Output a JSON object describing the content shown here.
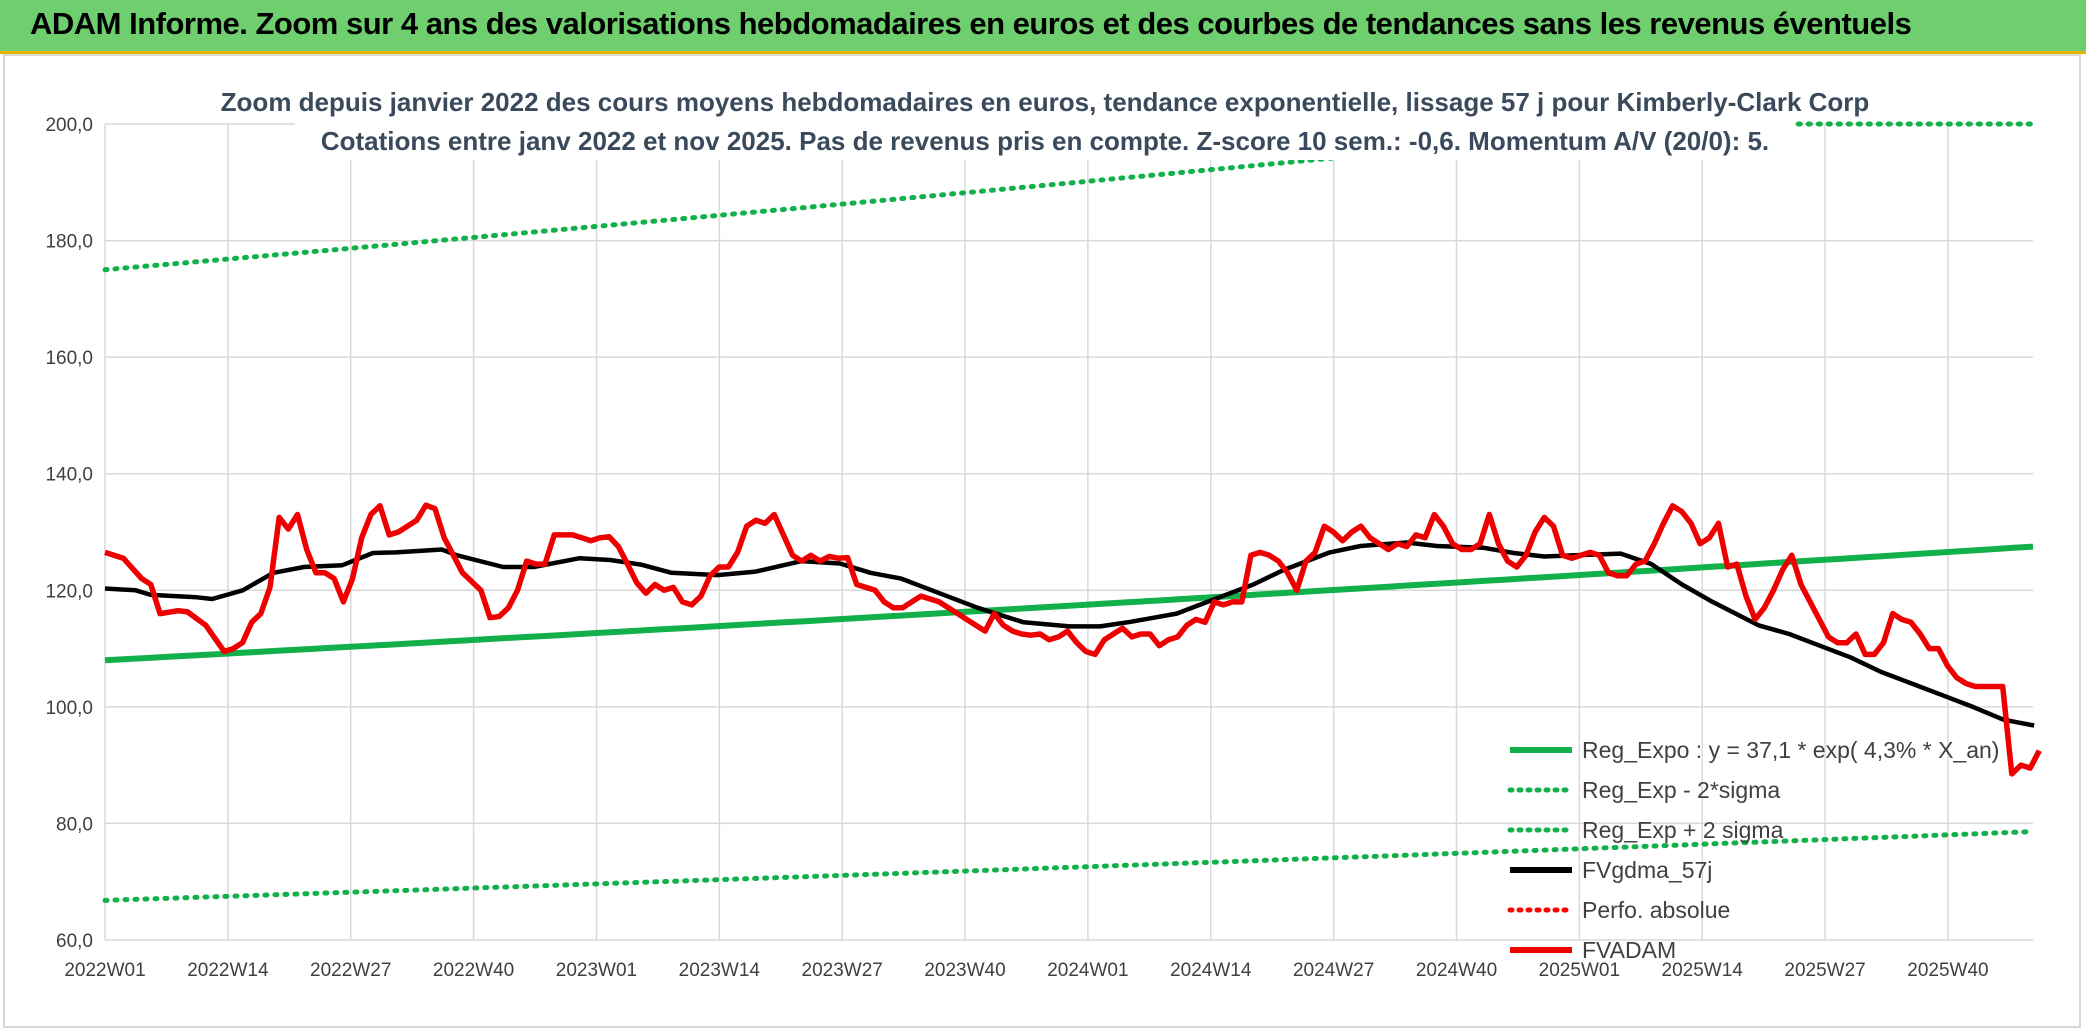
{
  "header": {
    "title": "ADAM Informe. Zoom sur 4 ans des valorisations hebdomadaires en euros et des courbes de tendances sans les revenus éventuels"
  },
  "chart_data": {
    "type": "line",
    "title_line1": "Zoom depuis janvier 2022 des cours moyens hebdomadaires en euros, tendance exponentielle, lissage 57 j pour Kimberly-Clark Corp",
    "title_line2": "Cotations entre janv 2022 et nov 2025. Pas de revenus pris en compte. Z-score 10 sem.: -0,6. Momentum A/V (20/0): 5.",
    "ylim": [
      60,
      200
    ],
    "yticks": [
      "200,0",
      "180,0",
      "160,0",
      "140,0",
      "120,0",
      "100,0",
      "80,0",
      "60,0"
    ],
    "yticks_values": [
      200,
      180,
      160,
      140,
      120,
      100,
      80,
      60
    ],
    "x_tick_labels": [
      "2022W01",
      "2022W14",
      "2022W27",
      "2022W40",
      "2023W01",
      "2023W14",
      "2023W27",
      "2023W40",
      "2024W01",
      "2024W14",
      "2024W27",
      "2024W40",
      "2025W01",
      "2025W14",
      "2025W27",
      "2025W40"
    ],
    "x_tick_interval_weeks": 13,
    "n_weeks": 204,
    "legend": [
      {
        "key": "reg_expo",
        "label": "Reg_Expo : y = 37,1 * exp( 4,3% *  X_an)",
        "color": "#12b04a",
        "style": "solid"
      },
      {
        "key": "reg_minus",
        "label": "Reg_Exp - 2*sigma",
        "color": "#12b04a",
        "style": "dotted"
      },
      {
        "key": "reg_plus",
        "label": "Reg_Exp + 2 sigma",
        "color": "#12b04a",
        "style": "dotted"
      },
      {
        "key": "fvgdma",
        "label": "FVgdma_57j",
        "color": "#000000",
        "style": "solid"
      },
      {
        "key": "perfo",
        "label": "Perfo. absolue",
        "color": "#ff0000",
        "style": "dotted"
      },
      {
        "key": "fvadam",
        "label": "FVADAM",
        "color": "#ee0000",
        "style": "solid"
      }
    ],
    "series": {
      "reg_expo": {
        "start": 108.0,
        "end": 127.5
      },
      "reg_minus": {
        "start": 66.8,
        "end": 78.6
      },
      "reg_plus": {
        "start": 175.0,
        "end": 206.0
      },
      "fvgdma": [
        [
          0,
          120.3
        ],
        [
          4,
          120
        ],
        [
          6,
          119.2
        ],
        [
          12,
          118.8
        ],
        [
          14,
          118.5
        ],
        [
          18,
          120
        ],
        [
          22,
          123
        ],
        [
          26,
          124
        ],
        [
          31,
          124.3
        ],
        [
          35,
          126.4
        ],
        [
          38,
          126.5
        ],
        [
          44,
          127
        ],
        [
          46,
          126
        ],
        [
          52,
          124
        ],
        [
          56,
          124
        ],
        [
          62,
          125.5
        ],
        [
          66,
          125.2
        ],
        [
          70,
          124.4
        ],
        [
          74,
          123
        ],
        [
          80,
          122.6
        ],
        [
          85,
          123.2
        ],
        [
          91,
          125
        ],
        [
          96,
          124.6
        ],
        [
          100,
          123
        ],
        [
          104,
          122
        ],
        [
          108,
          120
        ],
        [
          114,
          117
        ],
        [
          120,
          114.5
        ],
        [
          126,
          113.8
        ],
        [
          130,
          113.8
        ],
        [
          134,
          114.6
        ],
        [
          140,
          116
        ],
        [
          144,
          118
        ],
        [
          150,
          121
        ],
        [
          154,
          123.5
        ],
        [
          160,
          126.5
        ],
        [
          164,
          127.6
        ],
        [
          170,
          128.2
        ],
        [
          174,
          127.6
        ],
        [
          180,
          127.3
        ],
        [
          184,
          126.4
        ],
        [
          188,
          125.8
        ],
        [
          192,
          126
        ],
        [
          198,
          126.3
        ],
        [
          202,
          124.5
        ],
        [
          206,
          121
        ],
        [
          210,
          118
        ],
        [
          216,
          114
        ],
        [
          220,
          112.5
        ],
        [
          224,
          110.5
        ],
        [
          228,
          108.5
        ],
        [
          232,
          106
        ],
        [
          236,
          104
        ],
        [
          240,
          102
        ],
        [
          244,
          100
        ],
        [
          248,
          97.8
        ],
        [
          252,
          96.8
        ]
      ],
      "fvadam": [
        [
          0,
          126.5
        ],
        [
          2,
          125.5
        ],
        [
          4,
          122
        ],
        [
          5,
          121
        ],
        [
          6,
          116
        ],
        [
          8,
          116.5
        ],
        [
          9,
          116.3
        ],
        [
          11,
          114
        ],
        [
          13,
          109.5
        ],
        [
          14,
          110
        ],
        [
          15,
          111
        ],
        [
          16,
          114.5
        ],
        [
          17,
          116
        ],
        [
          18,
          120.5
        ],
        [
          19,
          132.5
        ],
        [
          20,
          130.5
        ],
        [
          21,
          133
        ],
        [
          22,
          127
        ],
        [
          23,
          123
        ],
        [
          24,
          123
        ],
        [
          25,
          122
        ],
        [
          26,
          118
        ],
        [
          27,
          122
        ],
        [
          28,
          129
        ],
        [
          29,
          133
        ],
        [
          30,
          134.5
        ],
        [
          31,
          129.5
        ],
        [
          32,
          130
        ],
        [
          33,
          131
        ],
        [
          34,
          132
        ],
        [
          35,
          134.6
        ],
        [
          36,
          134
        ],
        [
          37,
          129
        ],
        [
          38,
          126
        ],
        [
          39,
          123
        ],
        [
          40,
          121.5
        ],
        [
          41,
          120
        ],
        [
          42,
          115.3
        ],
        [
          43,
          115.5
        ],
        [
          44,
          117
        ],
        [
          45,
          120
        ],
        [
          46,
          125
        ],
        [
          47,
          124.5
        ],
        [
          48,
          124.5
        ],
        [
          49,
          129.5
        ],
        [
          50,
          129.5
        ],
        [
          51,
          129.5
        ],
        [
          52,
          129
        ],
        [
          53,
          128.5
        ],
        [
          54,
          129
        ],
        [
          55,
          129.2
        ],
        [
          56,
          127.5
        ],
        [
          57,
          124.5
        ],
        [
          58,
          121.3
        ],
        [
          59,
          119.5
        ],
        [
          60,
          121
        ],
        [
          61,
          120
        ],
        [
          62,
          120.5
        ],
        [
          63,
          118
        ],
        [
          64,
          117.5
        ],
        [
          65,
          119
        ],
        [
          66,
          122.5
        ],
        [
          67,
          124
        ],
        [
          68,
          124
        ],
        [
          69,
          126.5
        ],
        [
          70,
          131
        ],
        [
          71,
          132
        ],
        [
          72,
          131.5
        ],
        [
          73,
          133
        ],
        [
          74,
          129.5
        ],
        [
          75,
          126
        ],
        [
          76,
          125
        ],
        [
          77,
          126
        ],
        [
          78,
          125
        ],
        [
          79,
          125.8
        ],
        [
          80,
          125.5
        ],
        [
          81,
          125.6
        ],
        [
          82,
          121
        ],
        [
          83,
          120.5
        ],
        [
          84,
          120
        ],
        [
          85,
          118
        ],
        [
          86,
          117
        ],
        [
          87,
          117
        ],
        [
          88,
          118
        ],
        [
          89,
          119
        ],
        [
          90,
          118.5
        ],
        [
          91,
          118
        ],
        [
          92,
          117
        ],
        [
          93,
          116
        ],
        [
          94,
          115
        ],
        [
          95,
          114
        ],
        [
          96,
          113
        ],
        [
          97,
          116
        ],
        [
          98,
          114
        ],
        [
          99,
          113
        ],
        [
          100,
          112.5
        ],
        [
          101,
          112.3
        ],
        [
          102,
          112.5
        ],
        [
          103,
          111.5
        ],
        [
          104,
          112
        ],
        [
          105,
          113
        ],
        [
          106,
          111
        ],
        [
          107,
          109.5
        ],
        [
          108,
          109
        ],
        [
          109,
          111.5
        ],
        [
          110,
          112.5
        ],
        [
          111,
          113.5
        ],
        [
          112,
          112
        ],
        [
          113,
          112.5
        ],
        [
          114,
          112.5
        ],
        [
          115,
          110.5
        ],
        [
          116,
          111.5
        ],
        [
          117,
          112
        ],
        [
          118,
          114
        ],
        [
          119,
          115
        ],
        [
          120,
          114.5
        ],
        [
          121,
          118
        ],
        [
          122,
          117.5
        ],
        [
          123,
          118
        ],
        [
          124,
          118
        ],
        [
          125,
          126
        ],
        [
          126,
          126.5
        ],
        [
          127,
          126
        ],
        [
          128,
          125
        ],
        [
          129,
          123
        ],
        [
          130,
          120
        ],
        [
          131,
          125
        ],
        [
          132,
          126.5
        ],
        [
          133,
          131
        ],
        [
          134,
          130
        ],
        [
          135,
          128.5
        ],
        [
          136,
          130
        ],
        [
          137,
          131
        ],
        [
          138,
          129
        ],
        [
          139,
          128
        ],
        [
          140,
          127
        ],
        [
          141,
          128
        ],
        [
          142,
          127.5
        ],
        [
          143,
          129.5
        ],
        [
          144,
          129
        ],
        [
          145,
          133
        ],
        [
          146,
          131
        ],
        [
          147,
          128
        ],
        [
          148,
          127
        ],
        [
          149,
          127
        ],
        [
          150,
          128
        ],
        [
          151,
          133
        ],
        [
          152,
          128
        ],
        [
          153,
          125
        ],
        [
          154,
          124
        ],
        [
          155,
          126
        ],
        [
          156,
          130
        ],
        [
          157,
          132.5
        ],
        [
          158,
          131
        ],
        [
          159,
          126
        ],
        [
          160,
          125.5
        ],
        [
          161,
          126
        ],
        [
          162,
          126.5
        ],
        [
          163,
          126
        ],
        [
          164,
          123
        ],
        [
          165,
          122.5
        ],
        [
          166,
          122.5
        ],
        [
          167,
          124.5
        ],
        [
          168,
          125
        ],
        [
          169,
          128
        ],
        [
          170,
          131.5
        ],
        [
          171,
          134.5
        ],
        [
          172,
          133.5
        ],
        [
          173,
          131.5
        ],
        [
          174,
          128
        ],
        [
          175,
          129
        ],
        [
          176,
          131.5
        ],
        [
          177,
          124
        ],
        [
          178,
          124.5
        ],
        [
          179,
          119
        ],
        [
          180,
          115
        ],
        [
          181,
          117
        ],
        [
          182,
          120
        ],
        [
          183,
          123.5
        ],
        [
          184,
          126
        ],
        [
          185,
          121
        ],
        [
          186,
          118
        ],
        [
          187,
          115
        ],
        [
          188,
          112
        ],
        [
          189,
          111
        ],
        [
          190,
          111
        ],
        [
          191,
          112.5
        ],
        [
          192,
          109
        ],
        [
          193,
          109
        ],
        [
          194,
          111
        ],
        [
          195,
          116
        ],
        [
          196,
          115
        ],
        [
          197,
          114.5
        ],
        [
          198,
          112.5
        ],
        [
          199,
          110
        ],
        [
          200,
          110
        ],
        [
          201,
          107
        ],
        [
          202,
          105
        ],
        [
          203,
          104
        ],
        [
          204,
          103.5
        ],
        [
          205,
          103.5
        ],
        [
          206,
          103.5
        ],
        [
          207,
          103.5
        ],
        [
          208,
          88.5
        ],
        [
          209,
          90
        ],
        [
          210,
          89.5
        ],
        [
          211,
          92.5
        ]
      ]
    }
  }
}
